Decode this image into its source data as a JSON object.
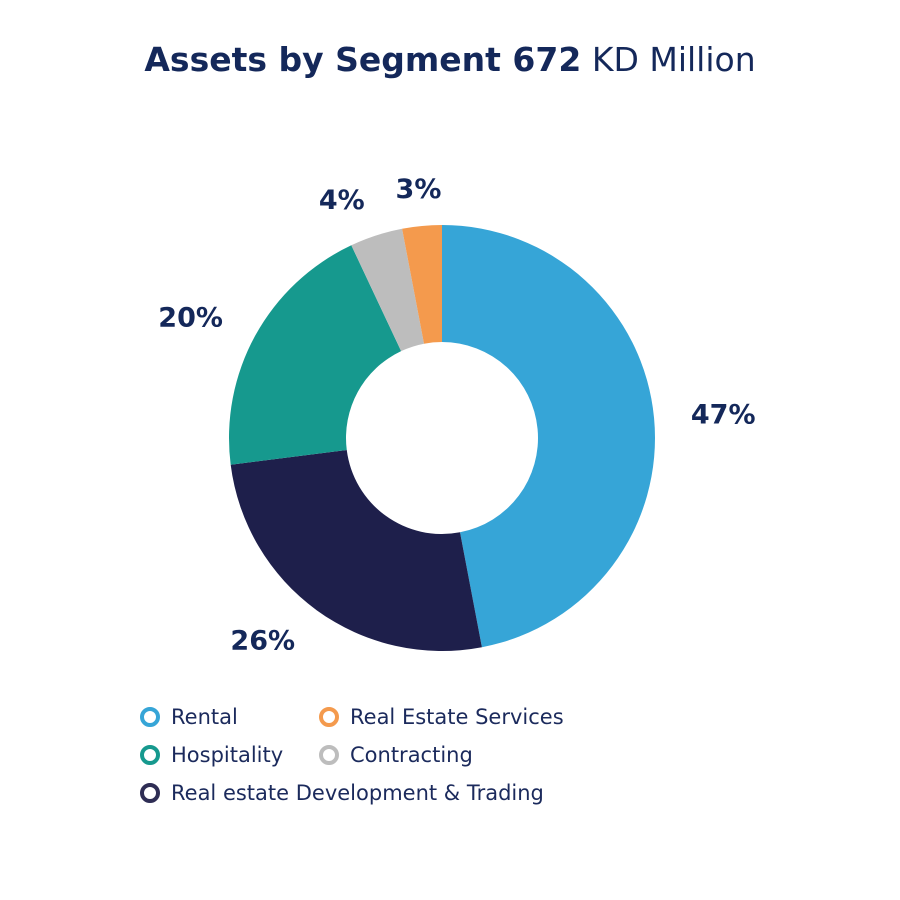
{
  "title": {
    "bold": "Assets by Segment 672",
    "light": "KD Million"
  },
  "chart_data": {
    "type": "pie",
    "title": "Assets by Segment 672 KD Million",
    "donut": true,
    "start_angle": "12 o'clock, clockwise",
    "series": [
      {
        "name": "Rental",
        "value": 47,
        "label": "47%",
        "color": "#36a5d7"
      },
      {
        "name": "Real estate Development & Trading",
        "value": 26,
        "label": "26%",
        "color": "#1e1f4b"
      },
      {
        "name": "Hospitality",
        "value": 20,
        "label": "20%",
        "color": "#16998e"
      },
      {
        "name": "Contracting",
        "value": 4,
        "label": "4%",
        "color": "#bdbdbd"
      },
      {
        "name": "Real Estate Services",
        "value": 3,
        "label": "3%",
        "color": "#f49a4d"
      }
    ],
    "legend_position": "bottom-left"
  },
  "legend": [
    {
      "label": "Rental",
      "color": "#36a5d7"
    },
    {
      "label": "Real Estate Services",
      "color": "#f49a4d"
    },
    {
      "label": "Hospitality",
      "color": "#16998e"
    },
    {
      "label": "Contracting",
      "color": "#bdbdbd"
    },
    {
      "label": "Real estate Development & Trading",
      "color": "#2e2d54"
    }
  ]
}
